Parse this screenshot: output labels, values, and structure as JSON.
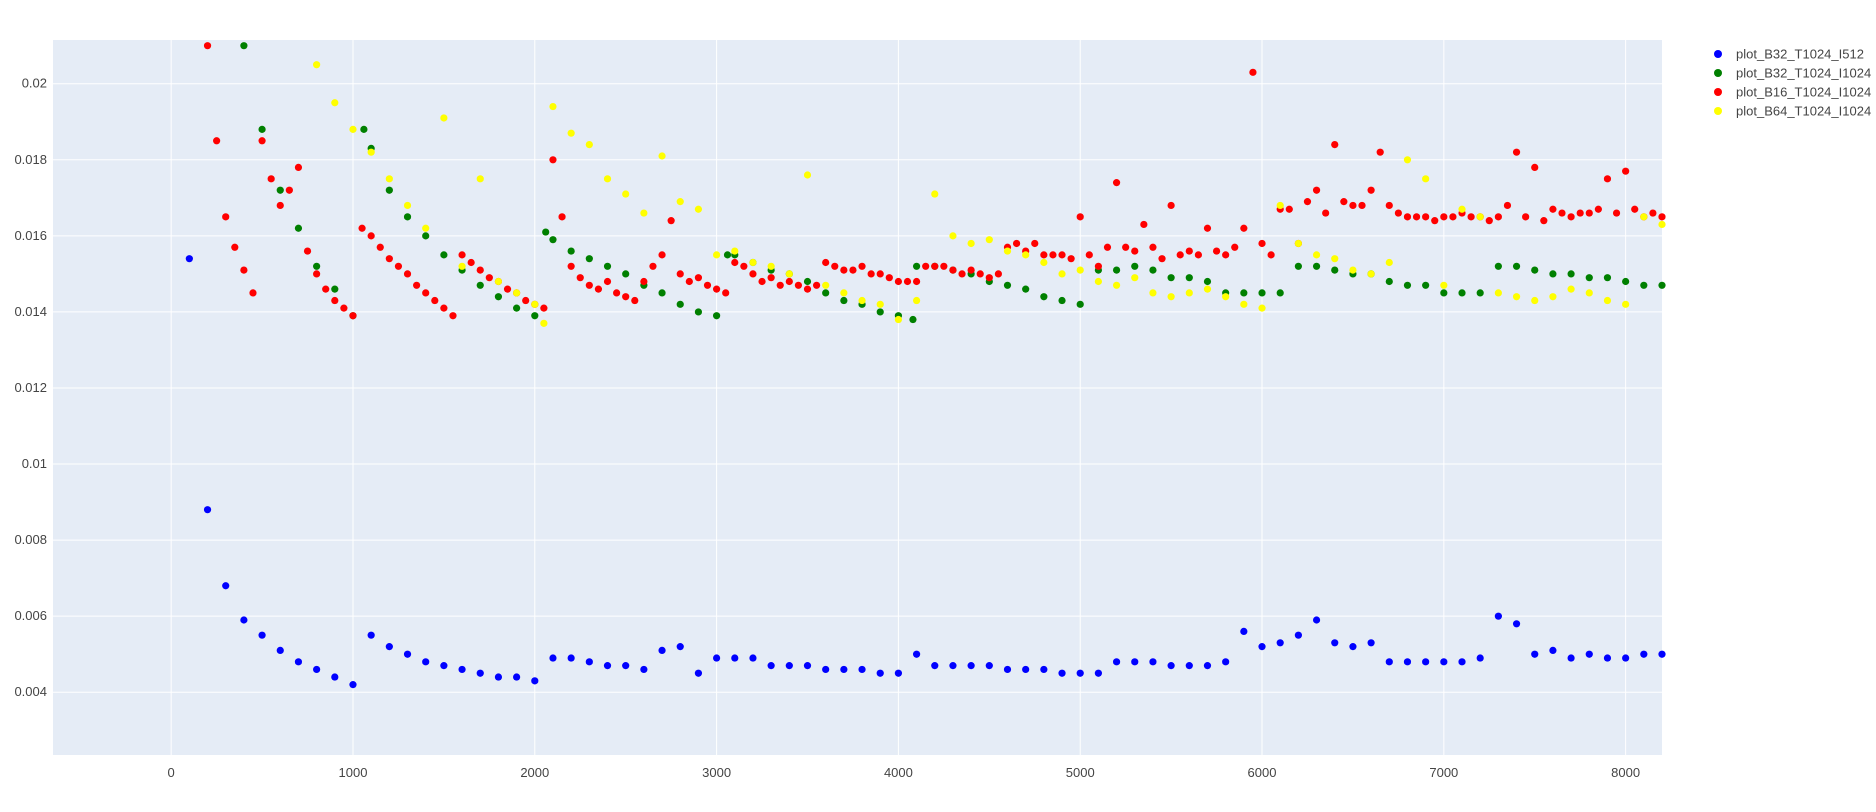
{
  "chart_data": {
    "type": "scatter",
    "title": "",
    "xlabel": "",
    "ylabel": "",
    "xlim": [
      -650,
      8200
    ],
    "ylim": [
      0.00235,
      0.02115
    ],
    "x_ticks": [
      0,
      1000,
      2000,
      3000,
      4000,
      5000,
      6000,
      7000,
      8000
    ],
    "x_tick_labels": [
      "0",
      "1000",
      "2000",
      "3000",
      "4000",
      "5000",
      "6000",
      "7000",
      "8000"
    ],
    "y_ticks": [
      0.004,
      0.006,
      0.008,
      0.01,
      0.012,
      0.014,
      0.016,
      0.018,
      0.02
    ],
    "y_tick_labels": [
      "0.004",
      "0.006",
      "0.008",
      "0.01",
      "0.012",
      "0.014",
      "0.016",
      "0.018",
      "0.02"
    ],
    "grid": true,
    "legend_position": "top-right",
    "colors": {
      "plot_bg": "#E5ECF6",
      "grid": "#ffffff",
      "text": "#444444"
    },
    "series": [
      {
        "name": "plot_B32_T1024_I512",
        "color": "#0000FF",
        "x": [
          100,
          200,
          300,
          400,
          500,
          600,
          700,
          800,
          900,
          1000,
          1100,
          1200,
          1300,
          1400,
          1500,
          1600,
          1700,
          1800,
          1900,
          2000,
          2100,
          2200,
          2300,
          2400,
          2500,
          2600,
          2700,
          2800,
          2900,
          3000,
          3100,
          3200,
          3300,
          3400,
          3500,
          3600,
          3700,
          3800,
          3900,
          4000,
          4100,
          4200,
          4300,
          4400,
          4500,
          4600,
          4700,
          4800,
          4900,
          5000,
          5100,
          5200,
          5300,
          5400,
          5500,
          5600,
          5700,
          5800,
          5900,
          6000,
          6100,
          6200,
          6300,
          6400,
          6500,
          6600,
          6700,
          6800,
          6900,
          7000,
          7100,
          7200,
          7300,
          7400,
          7500,
          7600,
          7700,
          7800,
          7900,
          8000,
          8100,
          8200
        ],
        "values": [
          0.0154,
          0.0088,
          0.0068,
          0.0059,
          0.0055,
          0.0051,
          0.0048,
          0.0046,
          0.0044,
          0.0042,
          0.0055,
          0.0052,
          0.005,
          0.0048,
          0.0047,
          0.0046,
          0.0045,
          0.0044,
          0.0044,
          0.0043,
          0.0049,
          0.0049,
          0.0048,
          0.0047,
          0.0047,
          0.0046,
          0.0051,
          0.0052,
          0.0045,
          0.0049,
          0.0049,
          0.0049,
          0.0047,
          0.0047,
          0.0047,
          0.0046,
          0.0046,
          0.0046,
          0.0045,
          0.0045,
          0.005,
          0.0047,
          0.0047,
          0.0047,
          0.0047,
          0.0046,
          0.0046,
          0.0046,
          0.0045,
          0.0045,
          0.0045,
          0.0048,
          0.0048,
          0.0048,
          0.0047,
          0.0047,
          0.0047,
          0.0048,
          0.0056,
          0.0052,
          0.0053,
          0.0055,
          0.0059,
          0.0053,
          0.0052,
          0.0053,
          0.0048,
          0.0048,
          0.0048,
          0.0048,
          0.0048,
          0.0049,
          0.006,
          0.0058,
          0.005,
          0.0051,
          0.0049,
          0.005,
          0.0049,
          0.0049,
          0.005,
          0.005
        ]
      },
      {
        "name": "plot_B32_T1024_I1024",
        "color": "#008000",
        "x": [
          400,
          500,
          600,
          700,
          800,
          900,
          1000,
          1060,
          1100,
          1200,
          1300,
          1400,
          1500,
          1600,
          1700,
          1800,
          1900,
          2000,
          2060,
          2100,
          2200,
          2300,
          2400,
          2500,
          2600,
          2700,
          2800,
          2900,
          3000,
          3060,
          3100,
          3200,
          3300,
          3400,
          3500,
          3600,
          3700,
          3800,
          3900,
          4000,
          4080,
          4100,
          4200,
          4300,
          4400,
          4500,
          4600,
          4700,
          4800,
          4900,
          5000,
          5100,
          5200,
          5300,
          5400,
          5500,
          5600,
          5700,
          5800,
          5900,
          6000,
          6100,
          6200,
          6300,
          6400,
          6500,
          6600,
          6700,
          6800,
          6900,
          7000,
          7100,
          7200,
          7300,
          7400,
          7500,
          7600,
          7700,
          7800,
          7900,
          8000,
          8100,
          8200
        ],
        "values": [
          0.021,
          0.0188,
          0.0172,
          0.0162,
          0.0152,
          0.0146,
          0.0139,
          0.0188,
          0.0183,
          0.0172,
          0.0165,
          0.016,
          0.0155,
          0.0151,
          0.0147,
          0.0144,
          0.0141,
          0.0139,
          0.0161,
          0.0159,
          0.0156,
          0.0154,
          0.0152,
          0.015,
          0.0147,
          0.0145,
          0.0142,
          0.014,
          0.0139,
          0.0155,
          0.0155,
          0.0153,
          0.0151,
          0.015,
          0.0148,
          0.0145,
          0.0143,
          0.0142,
          0.014,
          0.0139,
          0.0138,
          0.0152,
          0.0152,
          0.0151,
          0.015,
          0.0148,
          0.0147,
          0.0146,
          0.0144,
          0.0143,
          0.0142,
          0.0151,
          0.0151,
          0.0152,
          0.0151,
          0.0149,
          0.0149,
          0.0148,
          0.0145,
          0.0145,
          0.0145,
          0.0145,
          0.0152,
          0.0152,
          0.0151,
          0.015,
          0.015,
          0.0148,
          0.0147,
          0.0147,
          0.0145,
          0.0145,
          0.0145,
          0.0152,
          0.0152,
          0.0151,
          0.015,
          0.015,
          0.0149,
          0.0149,
          0.0148,
          0.0147,
          0.0147
        ]
      },
      {
        "name": "plot_B16_T1024_I1024",
        "color": "#FF0000",
        "x": [
          200,
          250,
          300,
          350,
          400,
          450,
          500,
          550,
          600,
          650,
          700,
          750,
          800,
          850,
          900,
          950,
          1000,
          1050,
          1100,
          1150,
          1200,
          1250,
          1300,
          1350,
          1400,
          1450,
          1500,
          1550,
          1600,
          1650,
          1700,
          1750,
          1800,
          1850,
          1900,
          1950,
          2000,
          2050,
          2100,
          2150,
          2200,
          2250,
          2300,
          2350,
          2400,
          2450,
          2500,
          2550,
          2600,
          2650,
          2700,
          2750,
          2800,
          2850,
          2900,
          2950,
          3000,
          3050,
          3100,
          3150,
          3200,
          3250,
          3300,
          3350,
          3400,
          3450,
          3500,
          3550,
          3600,
          3650,
          3700,
          3750,
          3800,
          3850,
          3900,
          3950,
          4000,
          4050,
          4100,
          4150,
          4200,
          4250,
          4300,
          4350,
          4400,
          4450,
          4500,
          4550,
          4600,
          4650,
          4700,
          4750,
          4800,
          4850,
          4900,
          4950,
          5000,
          5050,
          5100,
          5150,
          5200,
          5250,
          5300,
          5350,
          5400,
          5450,
          5500,
          5550,
          5600,
          5650,
          5700,
          5750,
          5800,
          5850,
          5900,
          5950,
          6000,
          6050,
          6100,
          6150,
          6200,
          6250,
          6300,
          6350,
          6400,
          6450,
          6500,
          6550,
          6600,
          6650,
          6700,
          6750,
          6800,
          6850,
          6900,
          6950,
          7000,
          7050,
          7100,
          7150,
          7200,
          7250,
          7300,
          7350,
          7400,
          7450,
          7500,
          7550,
          7600,
          7650,
          7700,
          7750,
          7800,
          7850,
          7900,
          7950,
          8000,
          8050,
          8100,
          8150,
          8200
        ],
        "values": [
          0.021,
          0.0185,
          0.0165,
          0.0157,
          0.0151,
          0.0145,
          0.0185,
          0.0175,
          0.0168,
          0.0172,
          0.0178,
          0.0156,
          0.015,
          0.0146,
          0.0143,
          0.0141,
          0.0139,
          0.0162,
          0.016,
          0.0157,
          0.0154,
          0.0152,
          0.015,
          0.0147,
          0.0145,
          0.0143,
          0.0141,
          0.0139,
          0.0155,
          0.0153,
          0.0151,
          0.0149,
          0.0148,
          0.0146,
          0.0145,
          0.0143,
          0.0142,
          0.0141,
          0.018,
          0.0165,
          0.0152,
          0.0149,
          0.0147,
          0.0146,
          0.0148,
          0.0145,
          0.0144,
          0.0143,
          0.0148,
          0.0152,
          0.0155,
          0.0164,
          0.015,
          0.0148,
          0.0149,
          0.0147,
          0.0146,
          0.0145,
          0.0153,
          0.0152,
          0.015,
          0.0148,
          0.0149,
          0.0147,
          0.0148,
          0.0147,
          0.0146,
          0.0147,
          0.0153,
          0.0152,
          0.0151,
          0.0151,
          0.0152,
          0.015,
          0.015,
          0.0149,
          0.0148,
          0.0148,
          0.0148,
          0.0152,
          0.0152,
          0.0152,
          0.0151,
          0.015,
          0.0151,
          0.015,
          0.0149,
          0.015,
          0.0157,
          0.0158,
          0.0156,
          0.0158,
          0.0155,
          0.0155,
          0.0155,
          0.0154,
          0.0165,
          0.0155,
          0.0152,
          0.0157,
          0.0174,
          0.0157,
          0.0156,
          0.0163,
          0.0157,
          0.0154,
          0.0168,
          0.0155,
          0.0156,
          0.0155,
          0.0162,
          0.0156,
          0.0155,
          0.0157,
          0.0162,
          0.0203,
          0.0158,
          0.0155,
          0.0167,
          0.0167,
          0.0158,
          0.0169,
          0.0172,
          0.0166,
          0.0184,
          0.0169,
          0.0168,
          0.0168,
          0.0172,
          0.0182,
          0.0168,
          0.0166,
          0.0165,
          0.0165,
          0.0165,
          0.0164,
          0.0165,
          0.0165,
          0.0166,
          0.0165,
          0.0165,
          0.0164,
          0.0165,
          0.0168,
          0.0182,
          0.0165,
          0.0178,
          0.0164,
          0.0167,
          0.0166,
          0.0165,
          0.0166,
          0.0166,
          0.0167,
          0.0175,
          0.0166,
          0.0177,
          0.0167,
          0.0165,
          0.0166,
          0.0165
        ]
      },
      {
        "name": "plot_B64_T1024_I1024",
        "color": "#FFFF00",
        "x": [
          800,
          900,
          1000,
          1100,
          1200,
          1300,
          1400,
          1500,
          1600,
          1700,
          1800,
          1900,
          2000,
          2050,
          2100,
          2200,
          2300,
          2400,
          2500,
          2600,
          2700,
          2800,
          2900,
          3000,
          3100,
          3200,
          3300,
          3400,
          3500,
          3600,
          3700,
          3800,
          3900,
          4000,
          4100,
          4200,
          4300,
          4400,
          4500,
          4600,
          4700,
          4800,
          4900,
          5000,
          5100,
          5200,
          5300,
          5400,
          5500,
          5600,
          5700,
          5800,
          5900,
          6000,
          6100,
          6200,
          6300,
          6400,
          6500,
          6600,
          6700,
          6800,
          6900,
          7000,
          7100,
          7200,
          7300,
          7400,
          7500,
          7600,
          7700,
          7800,
          7900,
          8000,
          8100,
          8200
        ],
        "values": [
          0.0205,
          0.0195,
          0.0188,
          0.0182,
          0.0175,
          0.0168,
          0.0162,
          0.0191,
          0.0152,
          0.0175,
          0.0148,
          0.0145,
          0.0142,
          0.0137,
          0.0194,
          0.0187,
          0.0184,
          0.0175,
          0.0171,
          0.0166,
          0.0181,
          0.0169,
          0.0167,
          0.0155,
          0.0156,
          0.0153,
          0.0152,
          0.015,
          0.0176,
          0.0147,
          0.0145,
          0.0143,
          0.0142,
          0.0138,
          0.0143,
          0.0171,
          0.016,
          0.0158,
          0.0159,
          0.0156,
          0.0155,
          0.0153,
          0.015,
          0.0151,
          0.0148,
          0.0147,
          0.0149,
          0.0145,
          0.0144,
          0.0145,
          0.0146,
          0.0144,
          0.0142,
          0.0141,
          0.0168,
          0.0158,
          0.0155,
          0.0154,
          0.0151,
          0.015,
          0.0153,
          0.018,
          0.0175,
          0.0147,
          0.0167,
          0.0165,
          0.0145,
          0.0144,
          0.0143,
          0.0144,
          0.0146,
          0.0145,
          0.0143,
          0.0142,
          0.0165,
          0.0163
        ]
      }
    ]
  }
}
